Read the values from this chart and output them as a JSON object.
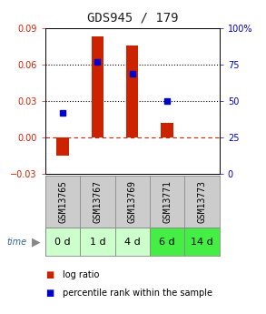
{
  "title": "GDS945 / 179",
  "samples": [
    "GSM13765",
    "GSM13767",
    "GSM13769",
    "GSM13771",
    "GSM13773"
  ],
  "time_labels": [
    "0 d",
    "1 d",
    "4 d",
    "6 d",
    "14 d"
  ],
  "log_ratios": [
    -0.015,
    0.083,
    0.076,
    0.012,
    null
  ],
  "percentile_ranks": [
    42,
    77,
    69,
    50,
    null
  ],
  "bar_color": "#cc2200",
  "dot_color": "#0000cc",
  "ylim_left": [
    -0.03,
    0.09
  ],
  "ylim_right": [
    0,
    100
  ],
  "yticks_left": [
    -0.03,
    0,
    0.03,
    0.06,
    0.09
  ],
  "yticks_right": [
    0,
    25,
    50,
    75,
    100
  ],
  "hlines_dotted": [
    0.03,
    0.06
  ],
  "hline_zero": 0,
  "grid_color": "#000000",
  "zero_line_color": "#cc2200",
  "bg_color": "#ffffff",
  "plot_bg": "#ffffff",
  "sample_bg": "#cccccc",
  "time_bg_colors": [
    "#ccffcc",
    "#ccffcc",
    "#ccffcc",
    "#44ee44",
    "#44ee44"
  ],
  "time_label_fontsize": 8,
  "sample_label_fontsize": 7,
  "title_fontsize": 10,
  "legend_fontsize": 7,
  "bar_width": 0.35
}
